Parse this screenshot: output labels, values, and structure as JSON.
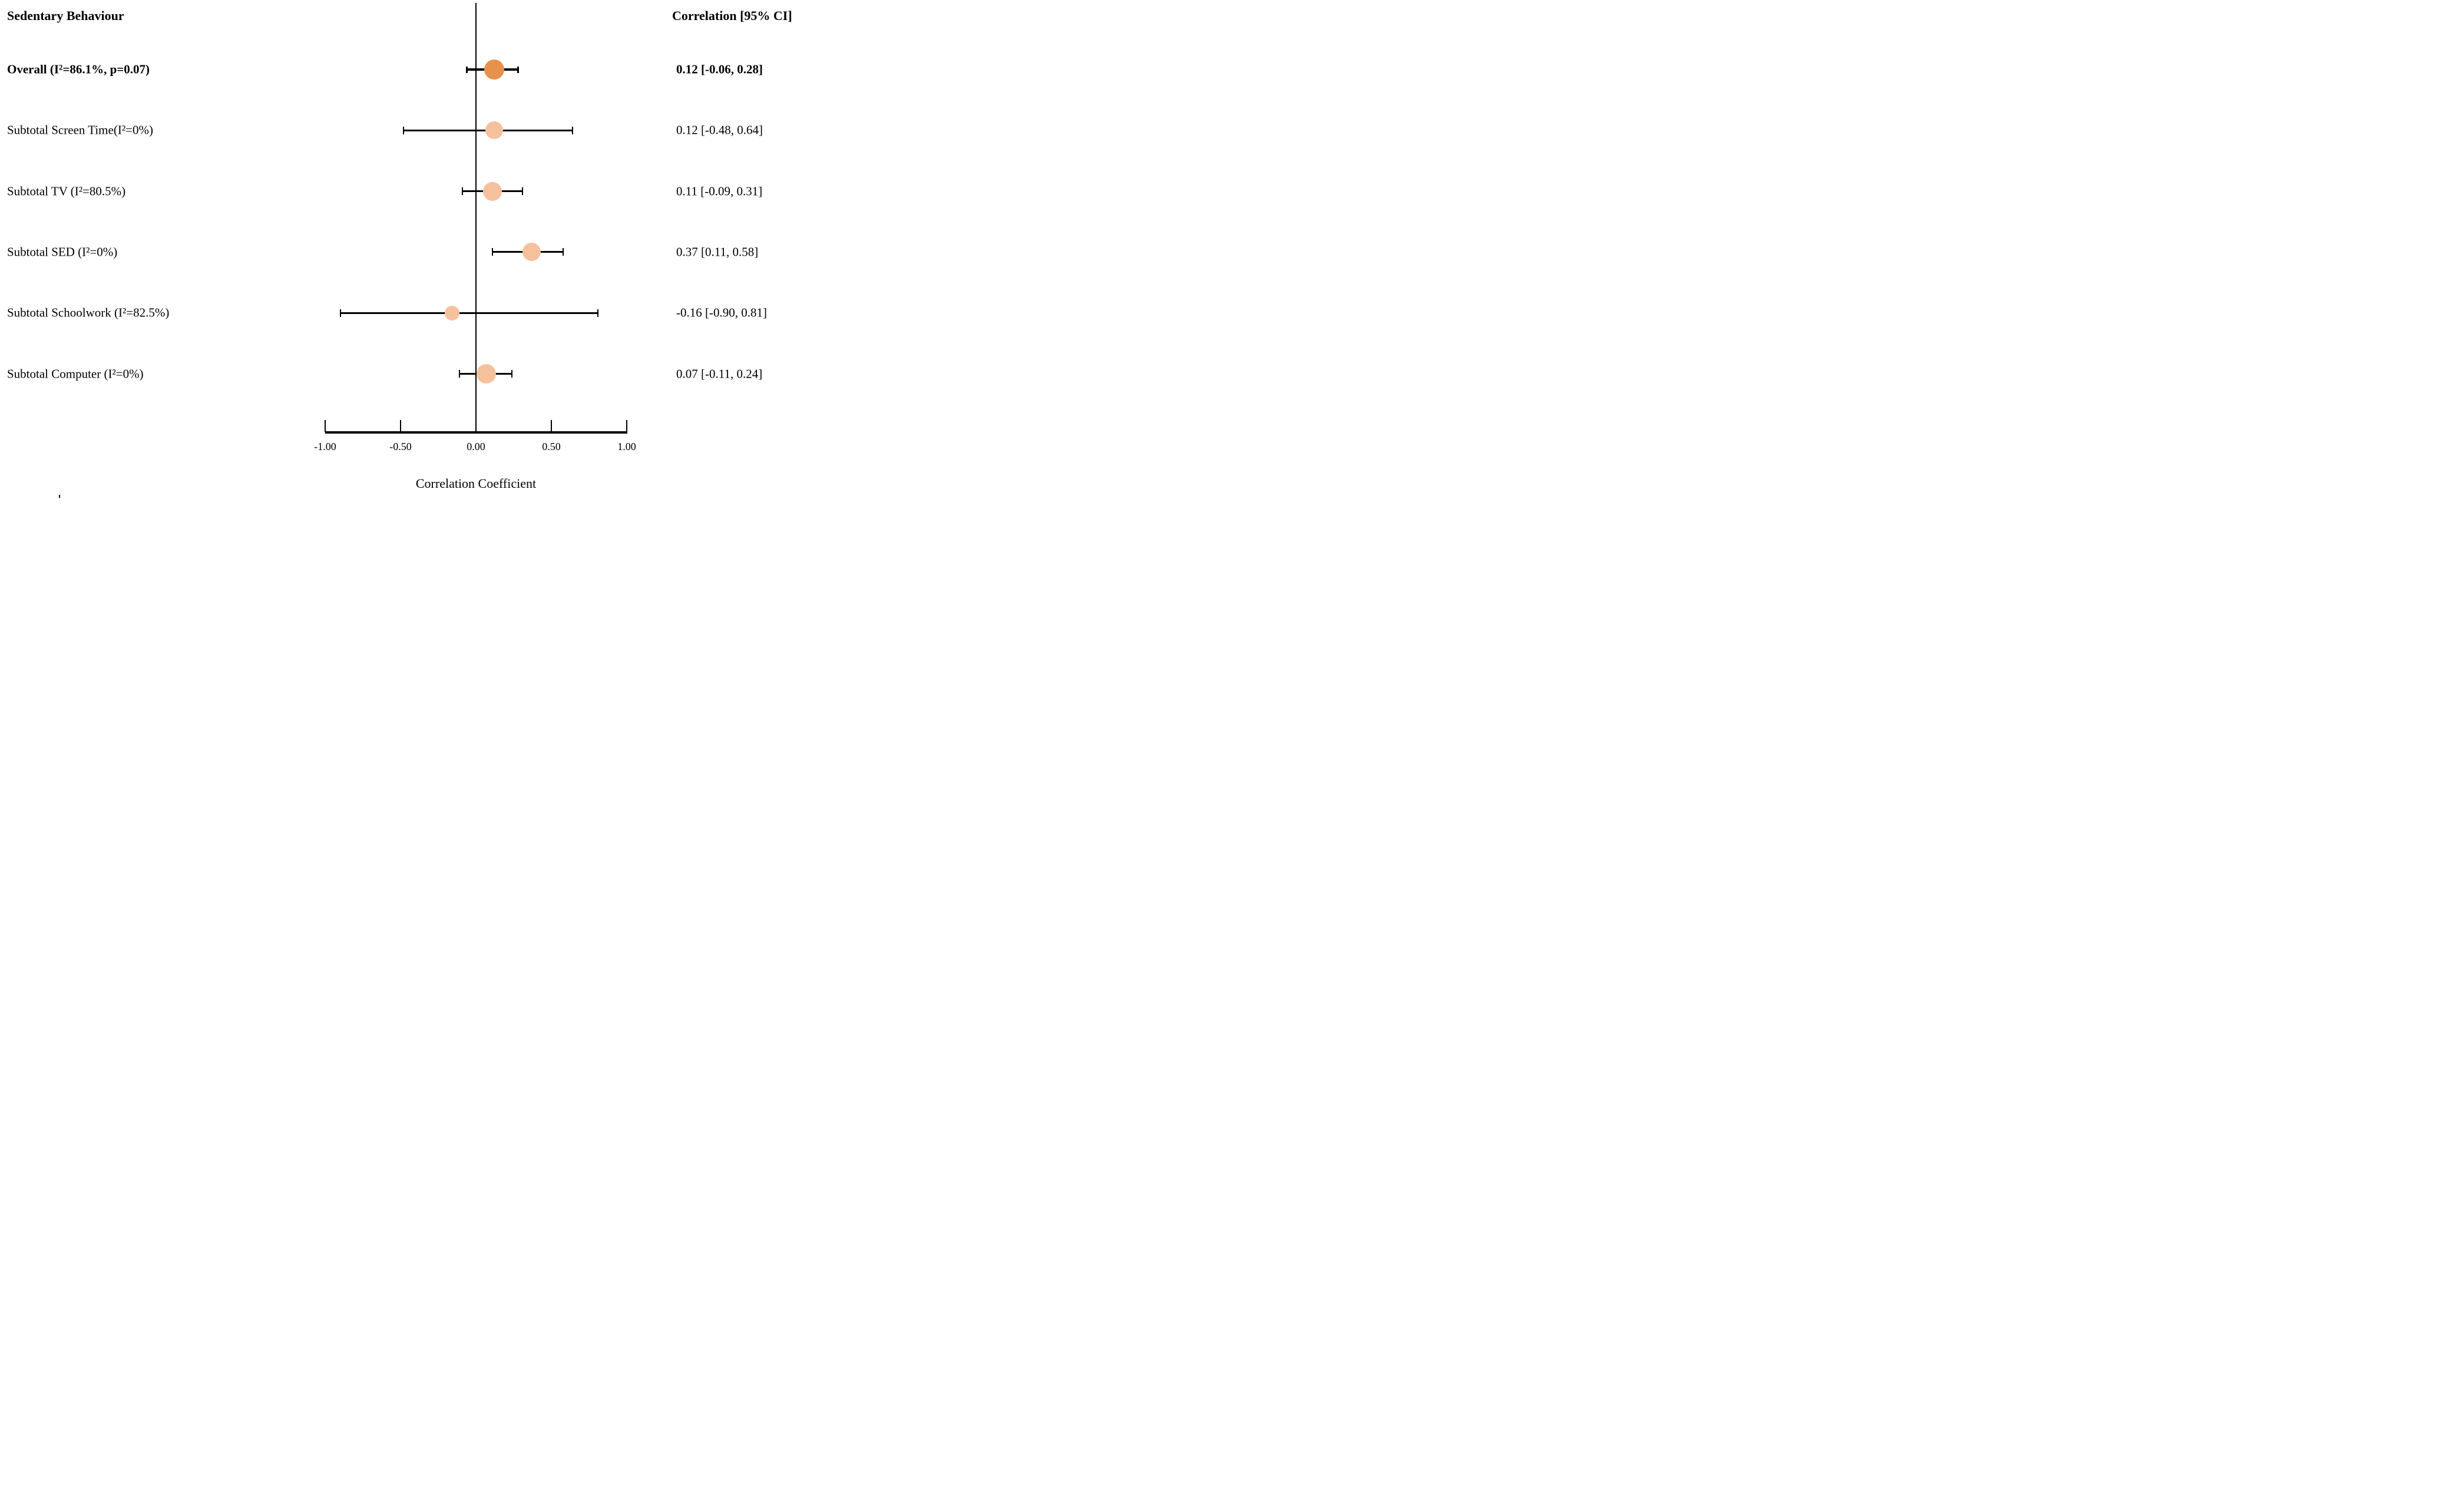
{
  "chart_data": {
    "type": "forest",
    "title": "Sedentary Behaviour",
    "column_header": "Correlation [95% CI]",
    "xlabel": "Correlation Coefficient",
    "xlim": [
      -1.0,
      1.0
    ],
    "grid": false,
    "zero_reference_line": 0.0,
    "x_ticks": [
      {
        "value": -1.0,
        "label": "-1.00"
      },
      {
        "value": -0.5,
        "label": "-0.50"
      },
      {
        "value": 0.0,
        "label": "0.00"
      },
      {
        "value": 0.5,
        "label": "0.50"
      },
      {
        "value": 1.0,
        "label": "1.00"
      }
    ],
    "colors": {
      "overall_dot": "#E8914D",
      "subtotal_dot": "#F5C19D",
      "lines": "#000000"
    },
    "rows": [
      {
        "label": "Overall (I²=86.1%, p=0.07)",
        "estimate_label": "0.12 [-0.06, 0.28]",
        "value": 0.12,
        "ci_low": -0.06,
        "ci_high": 0.28,
        "emphasis": true,
        "dot_color": "#E8914D",
        "dot_size": 34
      },
      {
        "label": "Subtotal Screen Time(I²=0%)",
        "estimate_label": "0.12 [-0.48, 0.64]",
        "value": 0.12,
        "ci_low": -0.48,
        "ci_high": 0.64,
        "emphasis": false,
        "dot_color": "#F5C19D",
        "dot_size": 30
      },
      {
        "label": "Subtotal TV (I²=80.5%)",
        "estimate_label": "0.11 [-0.09, 0.31]",
        "value": 0.11,
        "ci_low": -0.09,
        "ci_high": 0.31,
        "emphasis": false,
        "dot_color": "#F5C19D",
        "dot_size": 32
      },
      {
        "label": "Subtotal SED (I²=0%)",
        "estimate_label": "0.37 [0.11, 0.58]",
        "value": 0.37,
        "ci_low": 0.11,
        "ci_high": 0.58,
        "emphasis": false,
        "dot_color": "#F5C19D",
        "dot_size": 31
      },
      {
        "label": "Subtotal Schoolwork (I²=82.5%)",
        "estimate_label": "-0.16 [-0.90, 0.81]",
        "value": -0.16,
        "ci_low": -0.9,
        "ci_high": 0.81,
        "emphasis": false,
        "dot_color": "#F5C19D",
        "dot_size": 25
      },
      {
        "label": "Subtotal Computer (I²=0%)",
        "estimate_label": "0.07 [-0.11, 0.24]",
        "value": 0.07,
        "ci_low": -0.11,
        "ci_high": 0.24,
        "emphasis": false,
        "dot_color": "#F5C19D",
        "dot_size": 33
      }
    ]
  }
}
